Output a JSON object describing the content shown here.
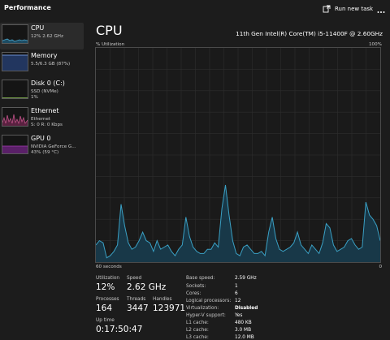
{
  "header": {
    "title": "Performance",
    "run_new_task_label": "Run new task",
    "run_new_task_icon": "run-task-icon",
    "more_icon": "more-options-icon"
  },
  "sidebar": {
    "items": [
      {
        "name": "CPU",
        "line1": "12% 2.62 GHz",
        "line2": "",
        "color": "#4aa3c8",
        "active": true
      },
      {
        "name": "Memory",
        "line1": "5.5/6.3 GB (87%)",
        "line2": "",
        "color": "#6b8fd1",
        "active": false
      },
      {
        "name": "Disk 0 (C:)",
        "line1": "SSD (NVMe)",
        "line2": "1%",
        "color": "#8fc454",
        "active": false
      },
      {
        "name": "Ethernet",
        "line1": "Ethernet",
        "line2": "S: 0 R: 0 Kbps",
        "color": "#c8578e",
        "active": false
      },
      {
        "name": "GPU 0",
        "line1": "NVIDIA GeForce G...",
        "line2": "43% (59 °C)",
        "color": "#a33ab5",
        "active": false
      }
    ]
  },
  "main": {
    "title": "CPU",
    "model": "11th Gen Intel(R) Core(TM) i5-11400F @ 2.60GHz",
    "utilization_axis_label": "% Utilization",
    "utilization_axis_max": "100%",
    "time_axis_label": "60 seconds",
    "time_axis_end": "0",
    "graph_line_color": "#3aa0c4",
    "graph_fill_color": "#183848",
    "utilization_history": [
      8,
      10,
      9,
      2,
      3,
      5,
      8,
      27,
      17,
      9,
      6,
      7,
      10,
      14,
      10,
      9,
      5,
      10,
      6,
      7,
      8,
      5,
      3,
      6,
      8,
      21,
      12,
      7,
      5,
      4,
      4,
      6,
      6,
      9,
      7,
      25,
      36,
      22,
      10,
      4,
      3,
      7,
      8,
      6,
      4,
      4,
      5,
      3,
      14,
      21,
      11,
      6,
      5,
      6,
      7,
      9,
      14,
      8,
      6,
      4,
      8,
      6,
      4,
      9,
      18,
      16,
      8,
      5,
      6,
      7,
      10,
      11,
      8,
      6,
      7,
      28,
      22,
      20,
      17,
      10
    ]
  },
  "stats": {
    "utilization_label": "Utilization",
    "utilization": "12%",
    "speed_label": "Speed",
    "speed": "2.62 GHz",
    "processes_label": "Processes",
    "processes": "164",
    "threads_label": "Threads",
    "threads": "3447",
    "handles_label": "Handles",
    "handles": "123971",
    "uptime_label": "Up time",
    "uptime": "0:17:50:47"
  },
  "specs": [
    {
      "label": "Base speed:",
      "value": "2.59 GHz"
    },
    {
      "label": "Sockets:",
      "value": "1"
    },
    {
      "label": "Cores:",
      "value": "6"
    },
    {
      "label": "Logical processors:",
      "value": "12"
    },
    {
      "label": "Virtualization:",
      "value": "Disabled"
    },
    {
      "label": "Hyper-V support:",
      "value": "Yes"
    },
    {
      "label": "L1 cache:",
      "value": "480 KB"
    },
    {
      "label": "L2 cache:",
      "value": "3.0 MB"
    },
    {
      "label": "L3 cache:",
      "value": "12.0 MB"
    }
  ]
}
